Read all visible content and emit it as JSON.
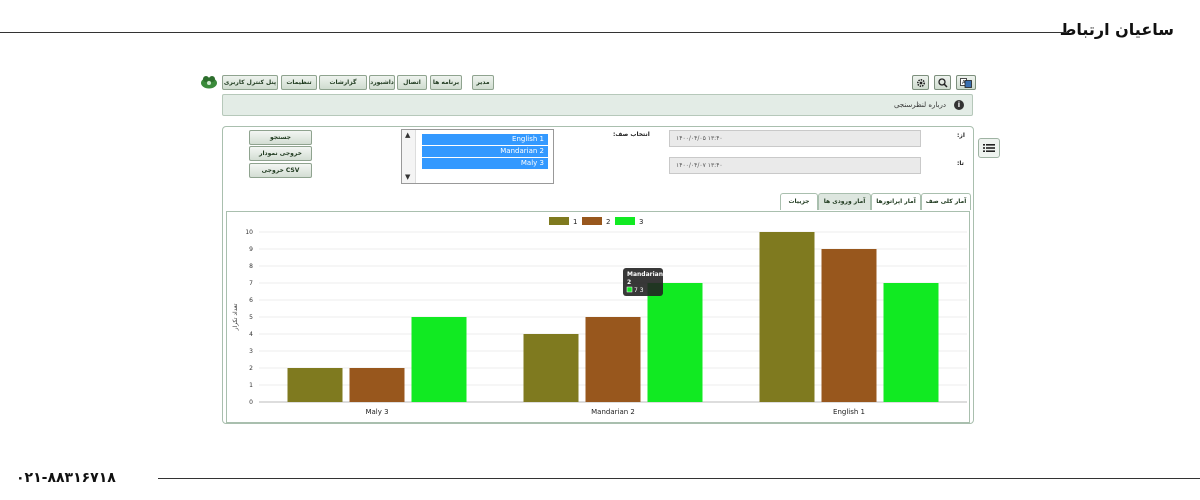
{
  "page": {
    "brand_title": "ساعیان ارتباط",
    "phone": "۰۲۱-۸۸۳۱۶۷۱۸"
  },
  "toolbar": {
    "buttons": [
      "پنل کنترل کاربری",
      "تنظیمات",
      "گزارشات",
      "داشبورد",
      "اتصال",
      "برنامه ها",
      "مدیر"
    ]
  },
  "about": {
    "text": "درباره لنظرسنجی"
  },
  "actions": {
    "search": "جستجو",
    "export_chart": "خروجی نمودار",
    "export_csv": "خروجی CSV"
  },
  "queue_select": {
    "label": "انتخاب صف:",
    "options": [
      "English 1",
      "Mandarian 2",
      "Maly 3"
    ]
  },
  "filters": {
    "from_label": "از:",
    "from_value": "۱۴۰۰/۰۴/۰۵ ۱۳:۴۰",
    "to_label": "تا:",
    "to_value": "۱۴۰۰/۰۴/۰۷ ۱۳:۴۰"
  },
  "tabs": [
    "آمار کلی صف",
    "آمار اپراتورها",
    "آمار ورودی ها",
    "جزییات"
  ],
  "tooltip": {
    "title": "Mandarian",
    "series": "2",
    "value": "7",
    "key": "3"
  },
  "chart_data": {
    "type": "bar",
    "categories": [
      "Maly   3",
      "Mandarian   2",
      "English 1"
    ],
    "series": [
      {
        "name": "1",
        "values": [
          2,
          4,
          10
        ],
        "color": "#7f7a1f"
      },
      {
        "name": "2",
        "values": [
          2,
          5,
          9
        ],
        "color": "#98571d"
      },
      {
        "name": "3",
        "values": [
          5,
          7,
          7
        ],
        "color": "#11ea22"
      }
    ],
    "ylabel": "تعداد تکرار",
    "ylim": [
      0,
      10
    ],
    "yticks": [
      0,
      1,
      2,
      3,
      4,
      5,
      6,
      7,
      8,
      9,
      10
    ],
    "legend": "top-center",
    "grid": true
  }
}
